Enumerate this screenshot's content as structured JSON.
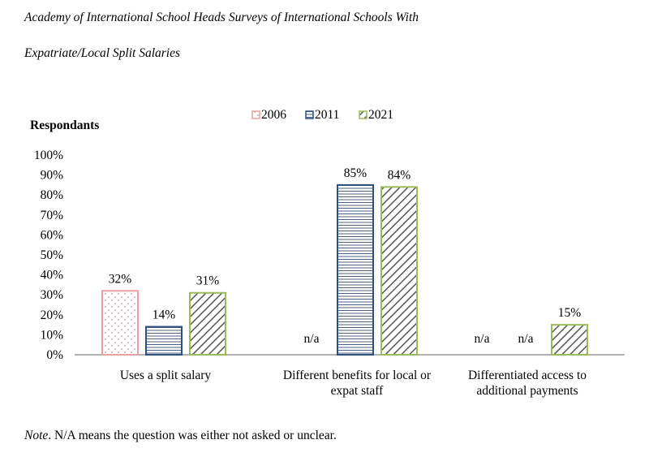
{
  "title_line1": "Academy of International School Heads Surveys of International Schools With",
  "title_line2": "Expatriate/Local Split Salaries",
  "note_label": "Note",
  "note_text": ". N/A means the question was either not asked or unclear.",
  "chart_data": {
    "type": "bar",
    "ylabel": "Respondants",
    "ylim": [
      0,
      100
    ],
    "yticks": [
      "0%",
      "10%",
      "20%",
      "30%",
      "40%",
      "50%",
      "60%",
      "70%",
      "80%",
      "90%",
      "100%"
    ],
    "legend_position": "top",
    "categories": [
      [
        "Uses a split salary"
      ],
      [
        "Different benefits for local or",
        "expat staff"
      ],
      [
        "Differentiated access to",
        "additional payments"
      ]
    ],
    "series": [
      {
        "name": "2006",
        "color": "#e8a0a0",
        "pattern": "dots",
        "values": [
          32,
          null,
          null
        ],
        "labels": [
          "32%",
          "n/a",
          "n/a"
        ]
      },
      {
        "name": "2011",
        "color": "#2f4f7f",
        "pattern": "horizontal-lines",
        "values": [
          14,
          85,
          null
        ],
        "labels": [
          "14%",
          "85%",
          "n/a"
        ]
      },
      {
        "name": "2021",
        "color": "#9bbb59",
        "pattern": "diagonal-lines",
        "values": [
          31,
          84,
          15
        ],
        "labels": [
          "31%",
          "84%",
          "15%"
        ]
      }
    ]
  }
}
